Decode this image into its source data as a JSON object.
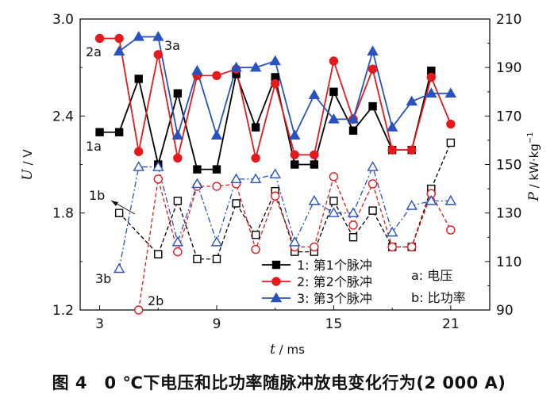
{
  "chart_data": {
    "type": "line",
    "title": "",
    "caption": "图 4　0 ℃下电压和比功率随脉冲放电变化行为(2 000 A)",
    "x": [
      3,
      4,
      5,
      6,
      7,
      8,
      9,
      10,
      11,
      12,
      13,
      14,
      15,
      16,
      17,
      18,
      19,
      20,
      21
    ],
    "xlabel_var": "t",
    "xlabel_unit": " / ms",
    "xticks": [
      3,
      9,
      15,
      21
    ],
    "xlim": [
      2,
      23
    ],
    "ylabel_left_var": "U",
    "ylabel_left_unit": " / V",
    "ylim_left": [
      1.2,
      3.0
    ],
    "yticks_left": [
      "1.2",
      "1.8",
      "2.4",
      "3.0"
    ],
    "ylabel_right_var": "P",
    "ylabel_right_unit": " / kW·kg",
    "ylabel_right_exp": "−1",
    "ylim_right": [
      90,
      210
    ],
    "yticks_right": [
      "90",
      "110",
      "130",
      "150",
      "170",
      "190",
      "210"
    ],
    "series": [
      {
        "name": "1: 第1个脉冲",
        "id": "u-pulse-1",
        "axis": "left",
        "style": "solid",
        "marker": "square",
        "filled": true,
        "color": "#000000",
        "x": [
          3,
          4,
          5,
          6,
          7,
          8,
          9,
          10,
          11,
          12,
          13,
          14,
          15,
          16,
          17,
          18,
          19,
          20
        ],
        "values": [
          2.3,
          2.3,
          2.63,
          2.1,
          2.54,
          2.07,
          2.07,
          2.66,
          2.33,
          2.64,
          2.1,
          2.1,
          2.55,
          2.31,
          2.46,
          2.19,
          2.19,
          2.68
        ]
      },
      {
        "name": "2: 第2个脉冲",
        "id": "u-pulse-2",
        "axis": "left",
        "style": "solid",
        "marker": "circle",
        "filled": true,
        "color": "#e41a1c",
        "x": [
          3,
          4,
          5,
          6,
          7,
          8,
          9,
          10,
          11,
          12,
          13,
          14,
          15,
          16,
          17,
          18,
          19,
          20,
          21
        ],
        "values": [
          2.88,
          2.88,
          2.18,
          2.78,
          2.14,
          2.65,
          2.65,
          2.69,
          2.14,
          2.6,
          2.16,
          2.16,
          2.74,
          2.38,
          2.69,
          2.19,
          2.19,
          2.64,
          2.35
        ]
      },
      {
        "name": "3: 第3个脉冲",
        "id": "u-pulse-3",
        "axis": "left",
        "style": "solid",
        "marker": "triangle",
        "filled": true,
        "color": "#2a52be",
        "x": [
          4,
          5,
          6,
          7,
          8,
          9,
          10,
          11,
          12,
          13,
          14,
          15,
          16,
          17,
          18,
          19,
          20,
          21
        ],
        "values": [
          2.8,
          2.89,
          2.89,
          2.28,
          2.68,
          2.28,
          2.7,
          2.7,
          2.74,
          2.28,
          2.53,
          2.38,
          2.38,
          2.8,
          2.33,
          2.49,
          2.54,
          2.54
        ]
      },
      {
        "name": "P 第1个脉冲",
        "id": "p-pulse-1",
        "axis": "right",
        "style": "dashed",
        "marker": "square",
        "filled": false,
        "color": "#000000",
        "x": [
          4,
          6,
          7,
          8,
          9,
          10,
          11,
          12,
          13,
          14,
          15,
          16,
          17,
          18,
          19,
          20,
          21
        ],
        "values": [
          130,
          113,
          135,
          111,
          111,
          134,
          121,
          139,
          114,
          114,
          135,
          120,
          131,
          116,
          116,
          140,
          159
        ]
      },
      {
        "name": "P 第2个脉冲",
        "id": "p-pulse-2",
        "axis": "right",
        "style": "dashed",
        "marker": "circle",
        "filled": false,
        "color": "#e41a1c",
        "x": [
          5,
          6,
          7,
          8,
          9,
          10,
          11,
          12,
          13,
          14,
          15,
          16,
          17,
          18,
          19,
          20,
          21
        ],
        "values": [
          90,
          144,
          114,
          141,
          141,
          142,
          115,
          137,
          116,
          116,
          145,
          125,
          142,
          116,
          116,
          138,
          123
        ]
      },
      {
        "name": "P 第3个脉冲",
        "id": "p-pulse-3",
        "axis": "right",
        "style": "dashdot",
        "marker": "triangle",
        "filled": false,
        "color": "#2a52be",
        "x": [
          4,
          5,
          6,
          7,
          8,
          9,
          10,
          11,
          12,
          13,
          14,
          15,
          16,
          17,
          18,
          19,
          20,
          21
        ],
        "values": [
          107,
          149,
          149,
          118,
          142,
          118,
          144,
          144,
          146,
          118,
          135,
          130,
          130,
          149,
          122,
          133,
          135,
          135
        ]
      }
    ],
    "annotations": {
      "a_2a": "2a",
      "a_3a": "3a",
      "a_1a": "1a",
      "a_1b": "1b",
      "a_3b": "3b",
      "a_2b": "2b",
      "note_a": "a: 电压",
      "note_b": "b: 比功率"
    },
    "legend": [
      "1: 第1个脉冲",
      "2: 第2个脉冲",
      "3: 第3个脉冲"
    ],
    "legend_position": "bottom-center"
  }
}
